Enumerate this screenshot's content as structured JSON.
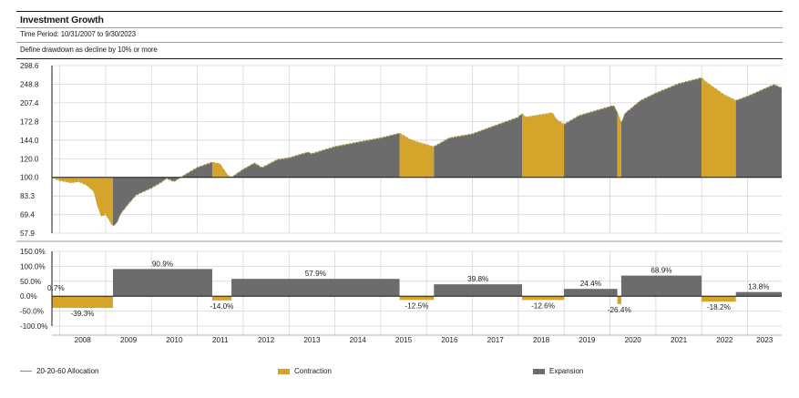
{
  "header": {
    "title": "Investment Growth",
    "time_period": "Time Period: 10/31/2007 to 9/30/2023",
    "definition": "Define drawdown as decline by 10% or more"
  },
  "colors": {
    "contraction": "#d4a52a",
    "expansion": "#6c6c6c",
    "line": "#b59526",
    "grid": "#d6d6d6",
    "axis": "#1a1a1a"
  },
  "legend": {
    "line_label": "20-20-60 Allocation",
    "contraction_label": "Contraction",
    "expansion_label": "Expansion"
  },
  "chart_data": [
    {
      "type": "area",
      "name": "growth",
      "x_start": "2007-10-31",
      "x_end": "2023-09-30",
      "y_scale": "log",
      "baseline": 100,
      "y_ticks": [
        57.9,
        69.4,
        83.3,
        100.0,
        120.0,
        144.0,
        172.8,
        207.4,
        248.8,
        298.6
      ],
      "y_tick_labels": [
        "57.9",
        "69.4",
        "83.3",
        "100.0",
        "120.0",
        "144.0",
        "172.8",
        "207.4",
        "248.8",
        "298.6"
      ],
      "ylim": [
        57.9,
        298.6
      ],
      "grid": true,
      "series": [
        {
          "name": "20-20-60 Allocation",
          "points": [
            [
              "2007-10-31",
              100
            ],
            [
              "2007-12-31",
              97
            ],
            [
              "2008-03-31",
              95
            ],
            [
              "2008-05-31",
              96
            ],
            [
              "2008-07-31",
              93
            ],
            [
              "2008-09-30",
              87
            ],
            [
              "2008-10-31",
              75
            ],
            [
              "2008-11-30",
              68
            ],
            [
              "2008-12-31",
              70
            ],
            [
              "2009-02-28",
              62
            ],
            [
              "2009-03-31",
              64
            ],
            [
              "2009-04-30",
              70
            ],
            [
              "2009-06-30",
              77
            ],
            [
              "2009-08-31",
              84
            ],
            [
              "2009-10-31",
              87
            ],
            [
              "2009-12-31",
              90
            ],
            [
              "2010-03-31",
              96
            ],
            [
              "2010-04-30",
              99
            ],
            [
              "2010-06-30",
              96
            ],
            [
              "2010-09-30",
              103
            ],
            [
              "2010-12-31",
              110
            ],
            [
              "2011-04-30",
              116
            ],
            [
              "2011-06-30",
              114
            ],
            [
              "2011-08-31",
              102
            ],
            [
              "2011-09-30",
              100
            ],
            [
              "2011-12-31",
              108
            ],
            [
              "2012-03-31",
              115
            ],
            [
              "2012-05-31",
              110
            ],
            [
              "2012-09-30",
              119
            ],
            [
              "2012-12-31",
              121
            ],
            [
              "2013-05-31",
              128
            ],
            [
              "2013-06-30",
              126
            ],
            [
              "2013-12-31",
              135
            ],
            [
              "2014-06-30",
              141
            ],
            [
              "2014-12-31",
              147
            ],
            [
              "2015-05-31",
              154
            ],
            [
              "2015-08-31",
              144
            ],
            [
              "2016-01-31",
              136
            ],
            [
              "2016-02-29",
              135
            ],
            [
              "2016-06-30",
              147
            ],
            [
              "2016-12-31",
              153
            ],
            [
              "2017-06-30",
              166
            ],
            [
              "2017-12-31",
              180
            ],
            [
              "2018-01-31",
              187
            ],
            [
              "2018-02-28",
              180
            ],
            [
              "2018-09-30",
              188
            ],
            [
              "2018-10-31",
              176
            ],
            [
              "2018-12-31",
              168
            ],
            [
              "2019-04-30",
              183
            ],
            [
              "2019-12-31",
              200
            ],
            [
              "2020-01-31",
              202
            ],
            [
              "2020-02-29",
              189
            ],
            [
              "2020-03-31",
              170
            ],
            [
              "2020-04-30",
              187
            ],
            [
              "2020-08-31",
              212
            ],
            [
              "2020-12-31",
              228
            ],
            [
              "2021-06-30",
              250
            ],
            [
              "2021-12-31",
              265
            ],
            [
              "2022-01-31",
              255
            ],
            [
              "2022-06-30",
              224
            ],
            [
              "2022-09-30",
              212
            ],
            [
              "2022-12-31",
              221
            ],
            [
              "2023-03-31",
              232
            ],
            [
              "2023-07-31",
              248
            ],
            [
              "2023-09-30",
              240
            ]
          ]
        }
      ],
      "regimes": [
        {
          "type": "Contraction",
          "start": "2007-10-31",
          "end": "2009-02-28"
        },
        {
          "type": "Expansion",
          "start": "2009-02-28",
          "end": "2011-04-30"
        },
        {
          "type": "Contraction",
          "start": "2011-04-30",
          "end": "2011-09-30"
        },
        {
          "type": "Expansion",
          "start": "2011-09-30",
          "end": "2015-05-31"
        },
        {
          "type": "Contraction",
          "start": "2015-05-31",
          "end": "2016-02-29"
        },
        {
          "type": "Expansion",
          "start": "2016-02-29",
          "end": "2018-01-31"
        },
        {
          "type": "Contraction",
          "start": "2018-01-31",
          "end": "2018-12-31"
        },
        {
          "type": "Expansion",
          "start": "2018-12-31",
          "end": "2020-02-29"
        },
        {
          "type": "Contraction",
          "start": "2020-02-29",
          "end": "2020-03-31"
        },
        {
          "type": "Expansion",
          "start": "2020-03-31",
          "end": "2021-12-31"
        },
        {
          "type": "Contraction",
          "start": "2021-12-31",
          "end": "2022-09-30"
        },
        {
          "type": "Expansion",
          "start": "2022-09-30",
          "end": "2023-09-30"
        }
      ]
    },
    {
      "type": "bar",
      "name": "regime-returns",
      "y_ticks": [
        150,
        100,
        50,
        0,
        -50,
        -100
      ],
      "y_tick_labels": [
        "150.0%",
        "100.0%",
        "50.0%",
        "0.0%",
        "-50.0%",
        "-100.0%"
      ],
      "ylim": [
        -100,
        150
      ],
      "x_tick_labels": [
        "2008",
        "2009",
        "2010",
        "2011",
        "2012",
        "2013",
        "2014",
        "2015",
        "2016",
        "2017",
        "2018",
        "2019",
        "2020",
        "2021",
        "2022",
        "2023"
      ],
      "bars": [
        {
          "type": "Contraction",
          "start": "2007-10-31",
          "end": "2009-02-28",
          "value": -39.3,
          "label": "-39.3%"
        },
        {
          "type": "Expansion",
          "start": "2009-02-28",
          "end": "2011-04-30",
          "value": 90.9,
          "label": "90.9%"
        },
        {
          "type": "Contraction",
          "start": "2011-04-30",
          "end": "2011-09-30",
          "value": -14.0,
          "label": "-14.0%"
        },
        {
          "type": "Expansion",
          "start": "2011-09-30",
          "end": "2015-05-31",
          "value": 57.9,
          "label": "57.9%"
        },
        {
          "type": "Contraction",
          "start": "2015-05-31",
          "end": "2016-02-29",
          "value": -12.5,
          "label": "-12.5%"
        },
        {
          "type": "Expansion",
          "start": "2016-02-29",
          "end": "2018-01-31",
          "value": 39.8,
          "label": "39.8%"
        },
        {
          "type": "Contraction",
          "start": "2018-01-31",
          "end": "2018-12-31",
          "value": -12.6,
          "label": "-12.6%"
        },
        {
          "type": "Expansion",
          "start": "2018-12-31",
          "end": "2020-02-29",
          "value": 24.4,
          "label": "24.4%"
        },
        {
          "type": "Contraction",
          "start": "2020-02-29",
          "end": "2020-03-31",
          "value": -26.4,
          "label": "-26.4%"
        },
        {
          "type": "Expansion",
          "start": "2020-03-31",
          "end": "2021-12-31",
          "value": 68.9,
          "label": "68.9%"
        },
        {
          "type": "Contraction",
          "start": "2021-12-31",
          "end": "2022-09-30",
          "value": -18.2,
          "label": "-18.2%"
        },
        {
          "type": "Expansion",
          "start": "2022-09-30",
          "end": "2023-09-30",
          "value": 13.8,
          "label": "13.8%"
        }
      ],
      "extra_labels": [
        {
          "text": "0.7%"
        }
      ]
    }
  ]
}
